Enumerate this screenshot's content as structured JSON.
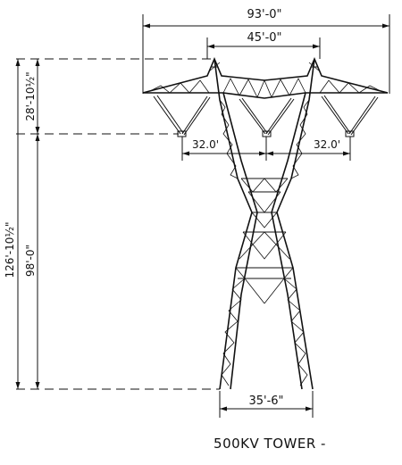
{
  "dimensions": {
    "overall_crossarm_width": "93'-0\"",
    "peak_spacing": "45'-0\"",
    "left_phase_spacing": "32.0'",
    "right_phase_spacing": "32.0'",
    "base_width": "35'-6\"",
    "total_height": "126'-10½\"",
    "conductor_height": "98'-0\"",
    "top_section_height": "28'-10½\""
  },
  "caption": "500KV TOWER -"
}
